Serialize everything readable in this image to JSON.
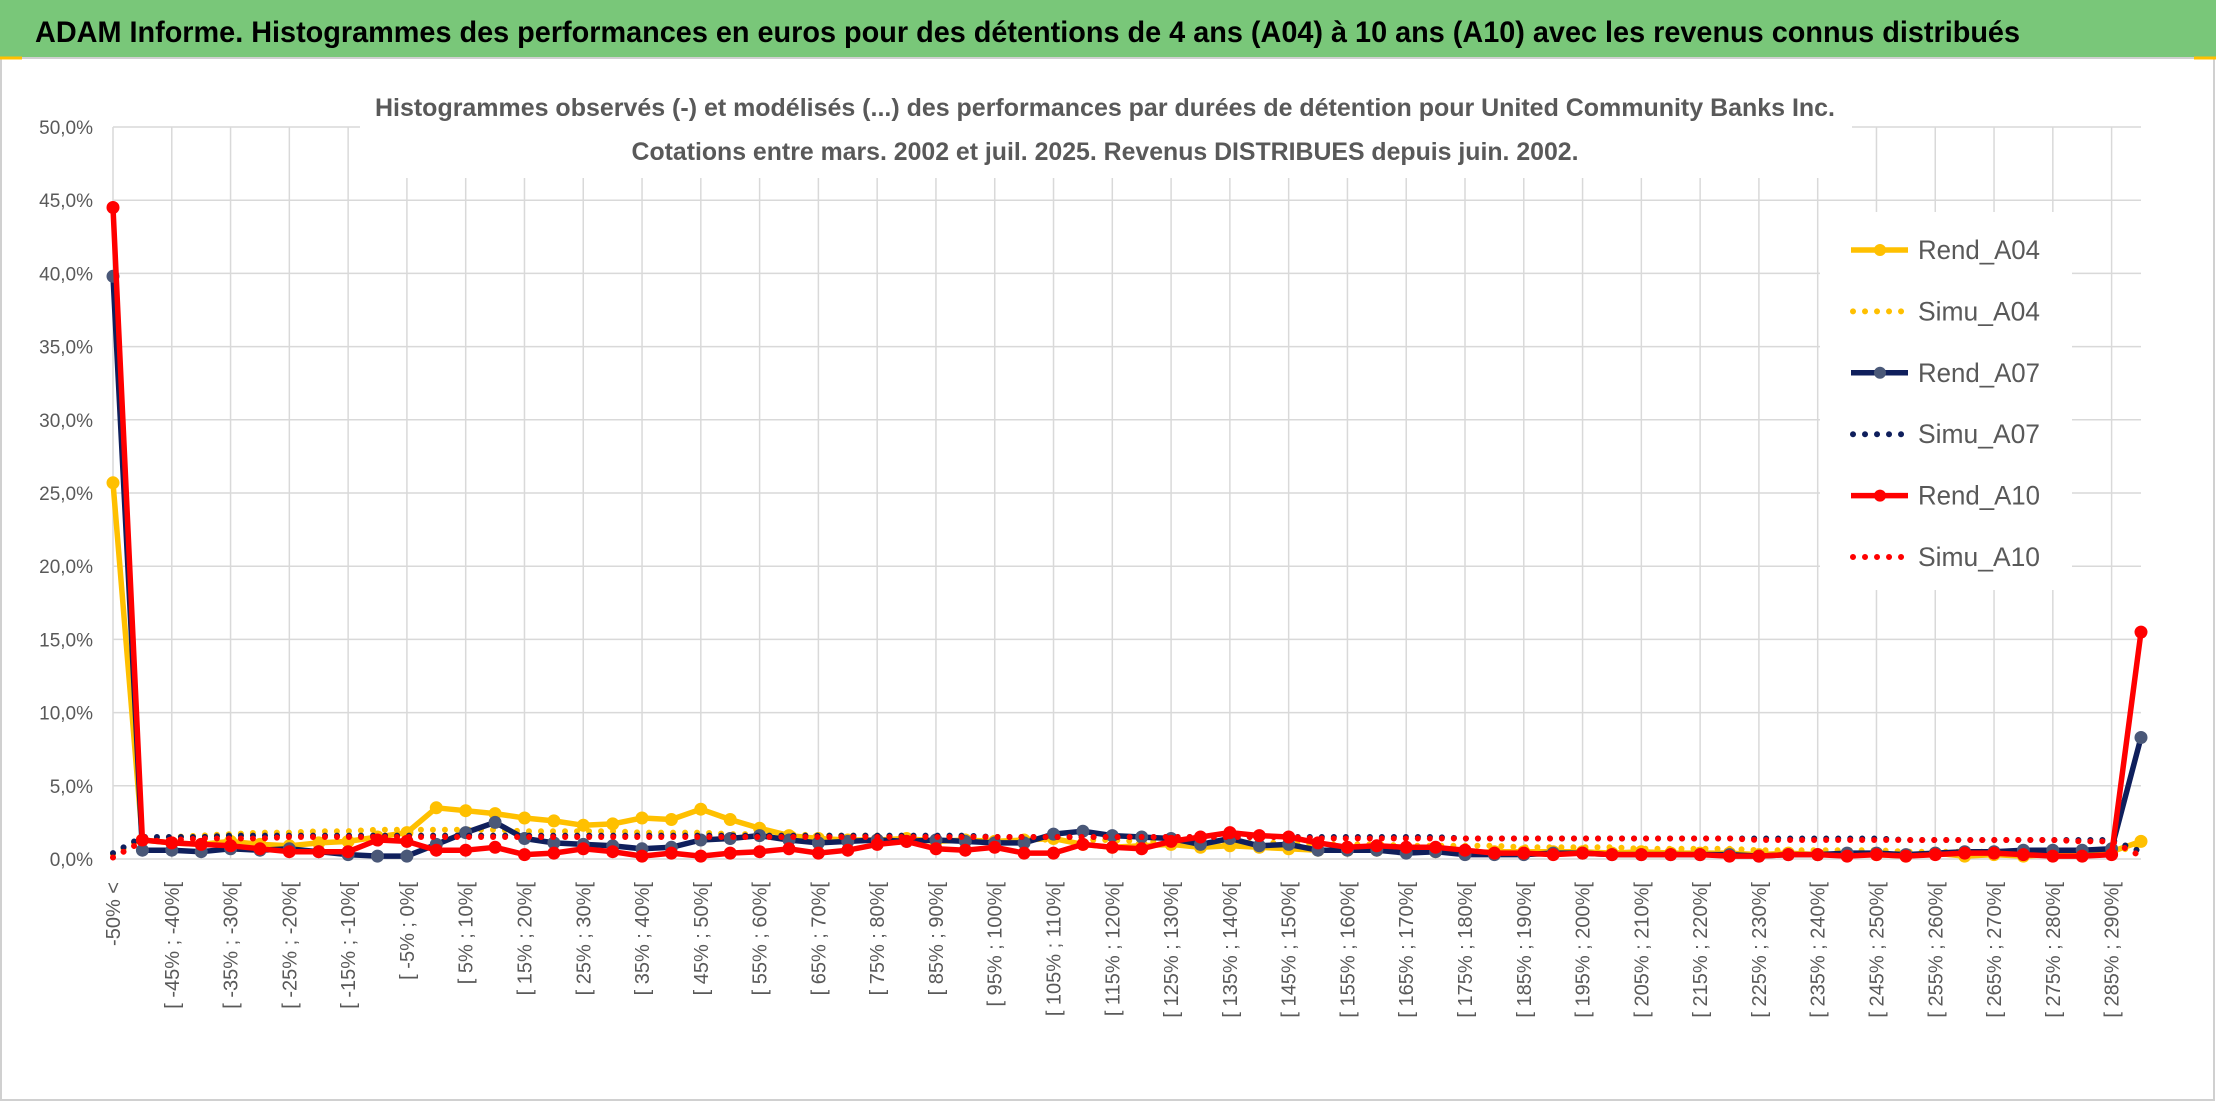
{
  "header": {
    "title": "ADAM Informe. Histogrammes des performances en euros pour des détentions de 4 ans (A04) à 10 ans (A10) avec les revenus connus distribués",
    "background_color": "#79C779"
  },
  "chart_data": {
    "type": "line",
    "title": "Histogrammes observés (-) et modélisés (...) des performances par durées de détention pour United Community Banks Inc.",
    "subtitle": "Cotations entre mars. 2002 et juil. 2025. Revenus DISTRIBUES depuis juin. 2002.",
    "xlabel": "",
    "ylabel": "",
    "ylim": [
      0,
      50
    ],
    "grid": true,
    "legend_position": "right",
    "y_ticks": [
      0,
      5,
      10,
      15,
      20,
      25,
      30,
      35,
      40,
      45,
      50
    ],
    "y_tick_labels": [
      "0,0%",
      "5,0%",
      "10,0%",
      "15,0%",
      "20,0%",
      "25,0%",
      "30,0%",
      "35,0%",
      "40,0%",
      "45,0%",
      "50,0%"
    ],
    "x_tick_labels": [
      "-50% <",
      "[ -45% ; -40%[",
      "[ -35% ; -30%[",
      "[ -25% ; -20%[",
      "[ -15% ; -10%[",
      "[ -5% ; 0%[",
      "[ 5% ; 10%[",
      "[ 15% ; 20%[",
      "[ 25% ; 30%[",
      "[ 35% ; 40%[",
      "[ 45% ; 50%[",
      "[ 55% ; 60%[",
      "[ 65% ; 70%[",
      "[ 75% ; 80%[",
      "[ 85% ; 90%[",
      "[ 95% ; 100%[",
      "[ 105% ; 110%[",
      "[ 115% ; 120%[",
      "[ 125% ; 130%[",
      "[ 135% ; 140%[",
      "[ 145% ; 150%[",
      "[ 155% ; 160%[",
      "[ 165% ; 170%[",
      "[ 175% ; 180%[",
      "[ 185% ; 190%[",
      "[ 195% ; 200%[",
      "[ 205% ; 210%[",
      "[ 215% ; 220%[",
      "[ 225% ; 230%[",
      "[ 235% ; 240%[",
      "[ 245% ; 250%[",
      "[ 255% ; 260%[",
      "[ 265% ; 270%[",
      "[ 275% ; 280%[",
      "[ 285% ; 290%["
    ],
    "series": [
      {
        "name": "Rend_A04",
        "line_style": "solid",
        "color": "#FFC000",
        "marker_color": "#FFC000",
        "values": [
          25.7,
          1.3,
          1.1,
          1.0,
          1.2,
          1.0,
          0.9,
          1.1,
          1.2,
          1.5,
          1.8,
          3.5,
          3.3,
          3.1,
          2.8,
          2.6,
          2.3,
          2.4,
          2.8,
          2.7,
          3.4,
          2.7,
          2.1,
          1.6,
          1.4,
          1.3,
          1.3,
          1.4,
          1.2,
          1.3,
          1.2,
          1.3,
          1.4,
          1.0,
          0.8,
          0.9,
          1.0,
          0.8,
          0.9,
          0.8,
          0.7,
          0.6,
          0.6,
          0.6,
          0.5,
          0.5,
          0.4,
          0.5,
          0.5,
          0.5,
          0.5,
          0.4,
          0.5,
          0.4,
          0.4,
          0.4,
          0.3,
          0.4,
          0.3,
          0.3,
          0.3,
          0.2,
          0.4,
          0.2,
          0.3,
          0.2,
          0.3,
          0.3,
          0.5,
          1.2
        ]
      },
      {
        "name": "Simu_A04",
        "line_style": "dotted",
        "color": "#FFC000",
        "values": [
          0.3,
          1.4,
          1.5,
          1.6,
          1.7,
          1.8,
          1.8,
          1.9,
          1.9,
          2.0,
          2.0,
          2.0,
          2.0,
          2.0,
          1.9,
          1.9,
          1.9,
          1.9,
          1.8,
          1.8,
          1.8,
          1.7,
          1.7,
          1.7,
          1.6,
          1.6,
          1.6,
          1.5,
          1.5,
          1.5,
          1.4,
          1.4,
          1.3,
          1.3,
          1.3,
          1.2,
          1.2,
          1.2,
          1.1,
          1.1,
          1.1,
          1.0,
          1.0,
          1.0,
          0.9,
          0.9,
          0.9,
          0.9,
          0.8,
          0.8,
          0.8,
          0.8,
          0.7,
          0.7,
          0.7,
          0.7,
          0.6,
          0.6,
          0.6,
          0.6,
          0.6,
          0.5,
          0.5,
          0.5,
          0.5,
          0.5,
          0.5,
          0.4,
          0.4,
          1.0
        ]
      },
      {
        "name": "Rend_A07",
        "line_style": "solid",
        "color": "#0F1F5C",
        "marker_color": "#4A5878",
        "values": [
          39.8,
          0.6,
          0.6,
          0.5,
          0.7,
          0.6,
          0.7,
          0.5,
          0.3,
          0.2,
          0.2,
          1.0,
          1.8,
          2.5,
          1.4,
          1.1,
          1.0,
          0.9,
          0.7,
          0.8,
          1.3,
          1.4,
          1.6,
          1.3,
          1.1,
          1.2,
          1.3,
          1.2,
          1.3,
          1.2,
          1.1,
          1.1,
          1.7,
          1.9,
          1.6,
          1.5,
          1.4,
          1.0,
          1.4,
          0.9,
          1.0,
          0.6,
          0.6,
          0.6,
          0.4,
          0.5,
          0.3,
          0.3,
          0.3,
          0.4,
          0.4,
          0.3,
          0.3,
          0.3,
          0.3,
          0.3,
          0.2,
          0.3,
          0.3,
          0.4,
          0.4,
          0.3,
          0.4,
          0.5,
          0.5,
          0.6,
          0.6,
          0.6,
          0.7,
          8.3
        ]
      },
      {
        "name": "Simu_A07",
        "line_style": "dotted",
        "color": "#0F1F5C",
        "values": [
          0.4,
          1.5,
          1.5,
          1.5,
          1.6,
          1.6,
          1.6,
          1.6,
          1.6,
          1.6,
          1.6,
          1.6,
          1.6,
          1.6,
          1.6,
          1.6,
          1.6,
          1.6,
          1.6,
          1.6,
          1.6,
          1.6,
          1.6,
          1.6,
          1.6,
          1.6,
          1.6,
          1.6,
          1.6,
          1.6,
          1.5,
          1.5,
          1.5,
          1.5,
          1.5,
          1.5,
          1.5,
          1.5,
          1.5,
          1.5,
          1.5,
          1.5,
          1.5,
          1.5,
          1.5,
          1.5,
          1.4,
          1.4,
          1.4,
          1.4,
          1.4,
          1.4,
          1.4,
          1.4,
          1.4,
          1.4,
          1.4,
          1.4,
          1.4,
          1.4,
          1.4,
          1.3,
          1.3,
          1.3,
          1.3,
          1.3,
          1.3,
          1.3,
          1.3,
          0.5
        ]
      },
      {
        "name": "Rend_A10",
        "line_style": "solid",
        "color": "#FF0000",
        "marker_color": "#FF0000",
        "values": [
          44.5,
          1.3,
          1.1,
          1.0,
          0.9,
          0.7,
          0.5,
          0.5,
          0.5,
          1.3,
          1.2,
          0.6,
          0.6,
          0.8,
          0.3,
          0.4,
          0.7,
          0.5,
          0.2,
          0.4,
          0.2,
          0.4,
          0.5,
          0.7,
          0.4,
          0.6,
          1.0,
          1.2,
          0.7,
          0.6,
          0.8,
          0.4,
          0.4,
          1.0,
          0.8,
          0.7,
          1.2,
          1.5,
          1.8,
          1.6,
          1.5,
          1.1,
          0.8,
          0.9,
          0.8,
          0.8,
          0.6,
          0.4,
          0.4,
          0.3,
          0.4,
          0.3,
          0.3,
          0.3,
          0.3,
          0.2,
          0.2,
          0.3,
          0.3,
          0.2,
          0.3,
          0.2,
          0.3,
          0.4,
          0.4,
          0.3,
          0.2,
          0.2,
          0.3,
          15.5
        ]
      },
      {
        "name": "Simu_A10",
        "line_style": "dotted",
        "color": "#FF0000",
        "values": [
          0.1,
          1.2,
          1.3,
          1.4,
          1.4,
          1.4,
          1.5,
          1.5,
          1.5,
          1.5,
          1.5,
          1.5,
          1.5,
          1.5,
          1.5,
          1.5,
          1.5,
          1.5,
          1.5,
          1.5,
          1.5,
          1.5,
          1.5,
          1.5,
          1.5,
          1.5,
          1.5,
          1.5,
          1.5,
          1.5,
          1.5,
          1.5,
          1.5,
          1.5,
          1.5,
          1.5,
          1.5,
          1.5,
          1.5,
          1.5,
          1.5,
          1.4,
          1.4,
          1.4,
          1.4,
          1.4,
          1.4,
          1.4,
          1.4,
          1.4,
          1.4,
          1.4,
          1.4,
          1.4,
          1.4,
          1.4,
          1.3,
          1.3,
          1.3,
          1.3,
          1.3,
          1.3,
          1.3,
          1.3,
          1.3,
          1.3,
          1.3,
          1.2,
          1.2,
          0.2
        ]
      }
    ]
  }
}
